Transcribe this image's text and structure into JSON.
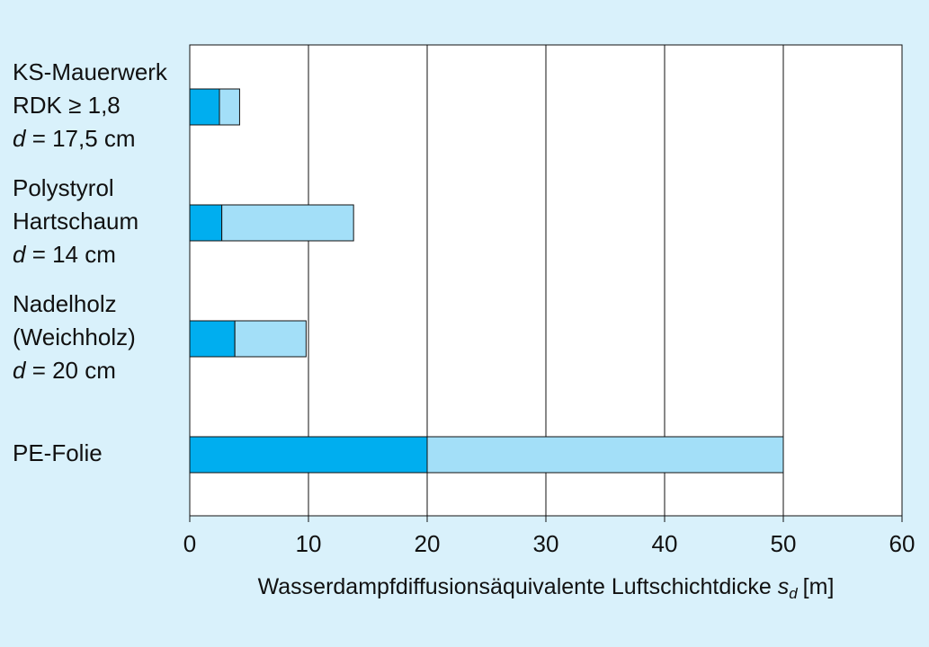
{
  "chart_data": {
    "type": "range-bar",
    "categories": [
      [
        "KS-Mauerwerk",
        "RDK ≥ 1,8",
        "d = 17,5 cm"
      ],
      [
        "Polystyrol",
        "Hartschaum",
        "d = 14 cm"
      ],
      [
        "Nadelholz",
        "(Weichholz)",
        "d = 20 cm"
      ],
      [
        "PE-Folie"
      ]
    ],
    "low": [
      2.5,
      2.7,
      3.8,
      20
    ],
    "high": [
      4.2,
      13.8,
      9.8,
      50
    ],
    "colors": [
      "#00aeef",
      "#a3dff8"
    ],
    "xlim": [
      0,
      60
    ],
    "xticks": [
      0,
      10,
      20,
      30,
      40,
      50,
      60
    ],
    "grid": true,
    "xlabel": {
      "text": "Wasserdampfdiffusionsäquivalente Luftschichtdicke",
      "symbol": "s",
      "subscript": "d",
      "unit": "[m]"
    }
  }
}
